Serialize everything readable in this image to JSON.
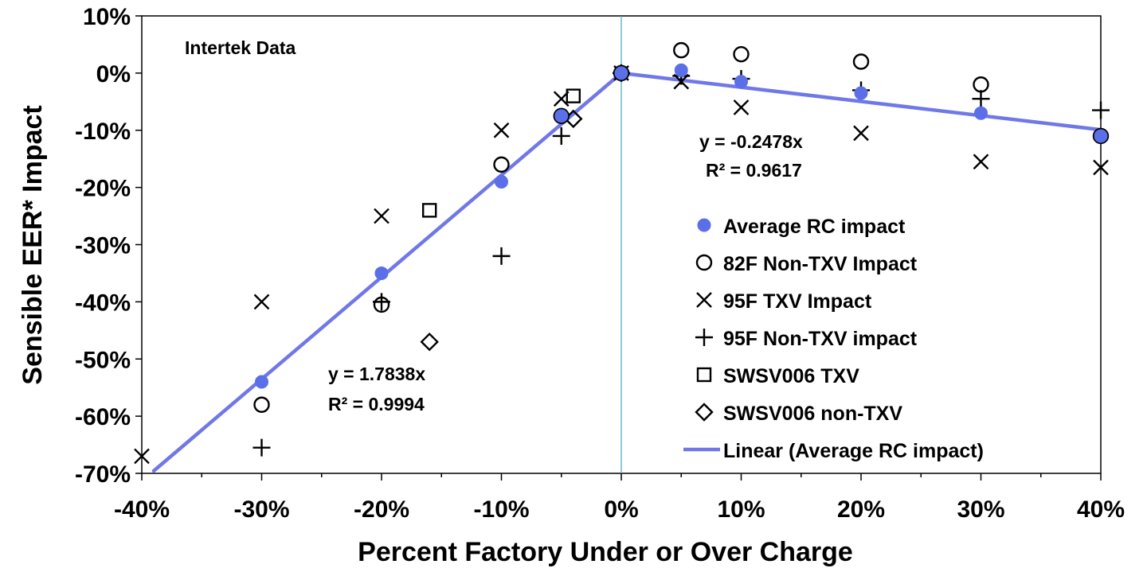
{
  "chart_data": {
    "type": "scatter",
    "title": "",
    "annotation_source": "Intertek Data",
    "xlabel": "Percent Factory Under or Over Charge",
    "ylabel": "Sensible EER* Impact",
    "xlim": [
      -40,
      40
    ],
    "ylim": [
      -70,
      10
    ],
    "x_ticks": [
      -40,
      -30,
      -20,
      -10,
      0,
      10,
      20,
      30,
      40
    ],
    "x_tick_labels": [
      "-40%",
      "-30%",
      "-20%",
      "-10%",
      "0%",
      "10%",
      "20%",
      "30%",
      "40%"
    ],
    "y_ticks": [
      10,
      0,
      -10,
      -20,
      -30,
      -40,
      -50,
      -60,
      -70
    ],
    "y_tick_labels": [
      "10%",
      "0%",
      "-10%",
      "-20%",
      "-30%",
      "-40%",
      "-50%",
      "-60%",
      "-70%"
    ],
    "grid": false,
    "legend_position": "right",
    "series": [
      {
        "name": "Average RC impact",
        "marker": "filled-circle",
        "color": "#5b6fe8",
        "x": [
          -30,
          -20,
          -10,
          -5,
          0,
          5,
          10,
          20,
          30,
          40
        ],
        "y": [
          -54,
          -35,
          -19,
          -7.5,
          0,
          0.5,
          -1.5,
          -3.5,
          -7,
          -11
        ]
      },
      {
        "name": "82F Non-TXV Impact",
        "marker": "open-circle",
        "color": "#000000",
        "x": [
          -30,
          -20,
          -10,
          -5,
          0,
          5,
          10,
          20,
          30,
          40
        ],
        "y": [
          -58,
          -40.5,
          -16,
          -7.5,
          0,
          4,
          3.3,
          2,
          -2,
          -11
        ]
      },
      {
        "name": "95F TXV Impact",
        "marker": "x",
        "color": "#000000",
        "x": [
          -40,
          -30,
          -20,
          -10,
          -5,
          0,
          5,
          10,
          20,
          30,
          40
        ],
        "y": [
          -67,
          -40,
          -25,
          -10,
          -4.5,
          0,
          -1.5,
          -6,
          -10.5,
          -15.5,
          -16.5
        ]
      },
      {
        "name": "95F Non-TXV impact",
        "marker": "plus",
        "color": "#000000",
        "x": [
          -30,
          -20,
          -10,
          -5,
          0,
          5,
          10,
          20,
          30,
          40
        ],
        "y": [
          -65.5,
          -40,
          -32,
          -11,
          0,
          -0.5,
          -1,
          -3,
          -4.5,
          -6.5
        ]
      },
      {
        "name": "SWSV006 TXV",
        "marker": "open-square",
        "color": "#000000",
        "x": [
          -16,
          -4
        ],
        "y": [
          -24,
          -4
        ]
      },
      {
        "name": "SWSV006 non-TXV",
        "marker": "open-diamond",
        "color": "#000000",
        "x": [
          -16,
          -4
        ],
        "y": [
          -47,
          -8
        ]
      }
    ],
    "trendlines": [
      {
        "name": "Linear (Average RC impact)",
        "color": "#7078e8",
        "segments": [
          {
            "x": [
              -39,
              0
            ],
            "slope": 1.7838
          },
          {
            "x": [
              0,
              40
            ],
            "slope": -0.2478
          }
        ],
        "equations": [
          {
            "equation": "y = 1.7838x",
            "r2": "R² = 0.9994"
          },
          {
            "equation": "y = -0.2478x",
            "r2": "R² = 0.9617"
          }
        ]
      }
    ]
  }
}
